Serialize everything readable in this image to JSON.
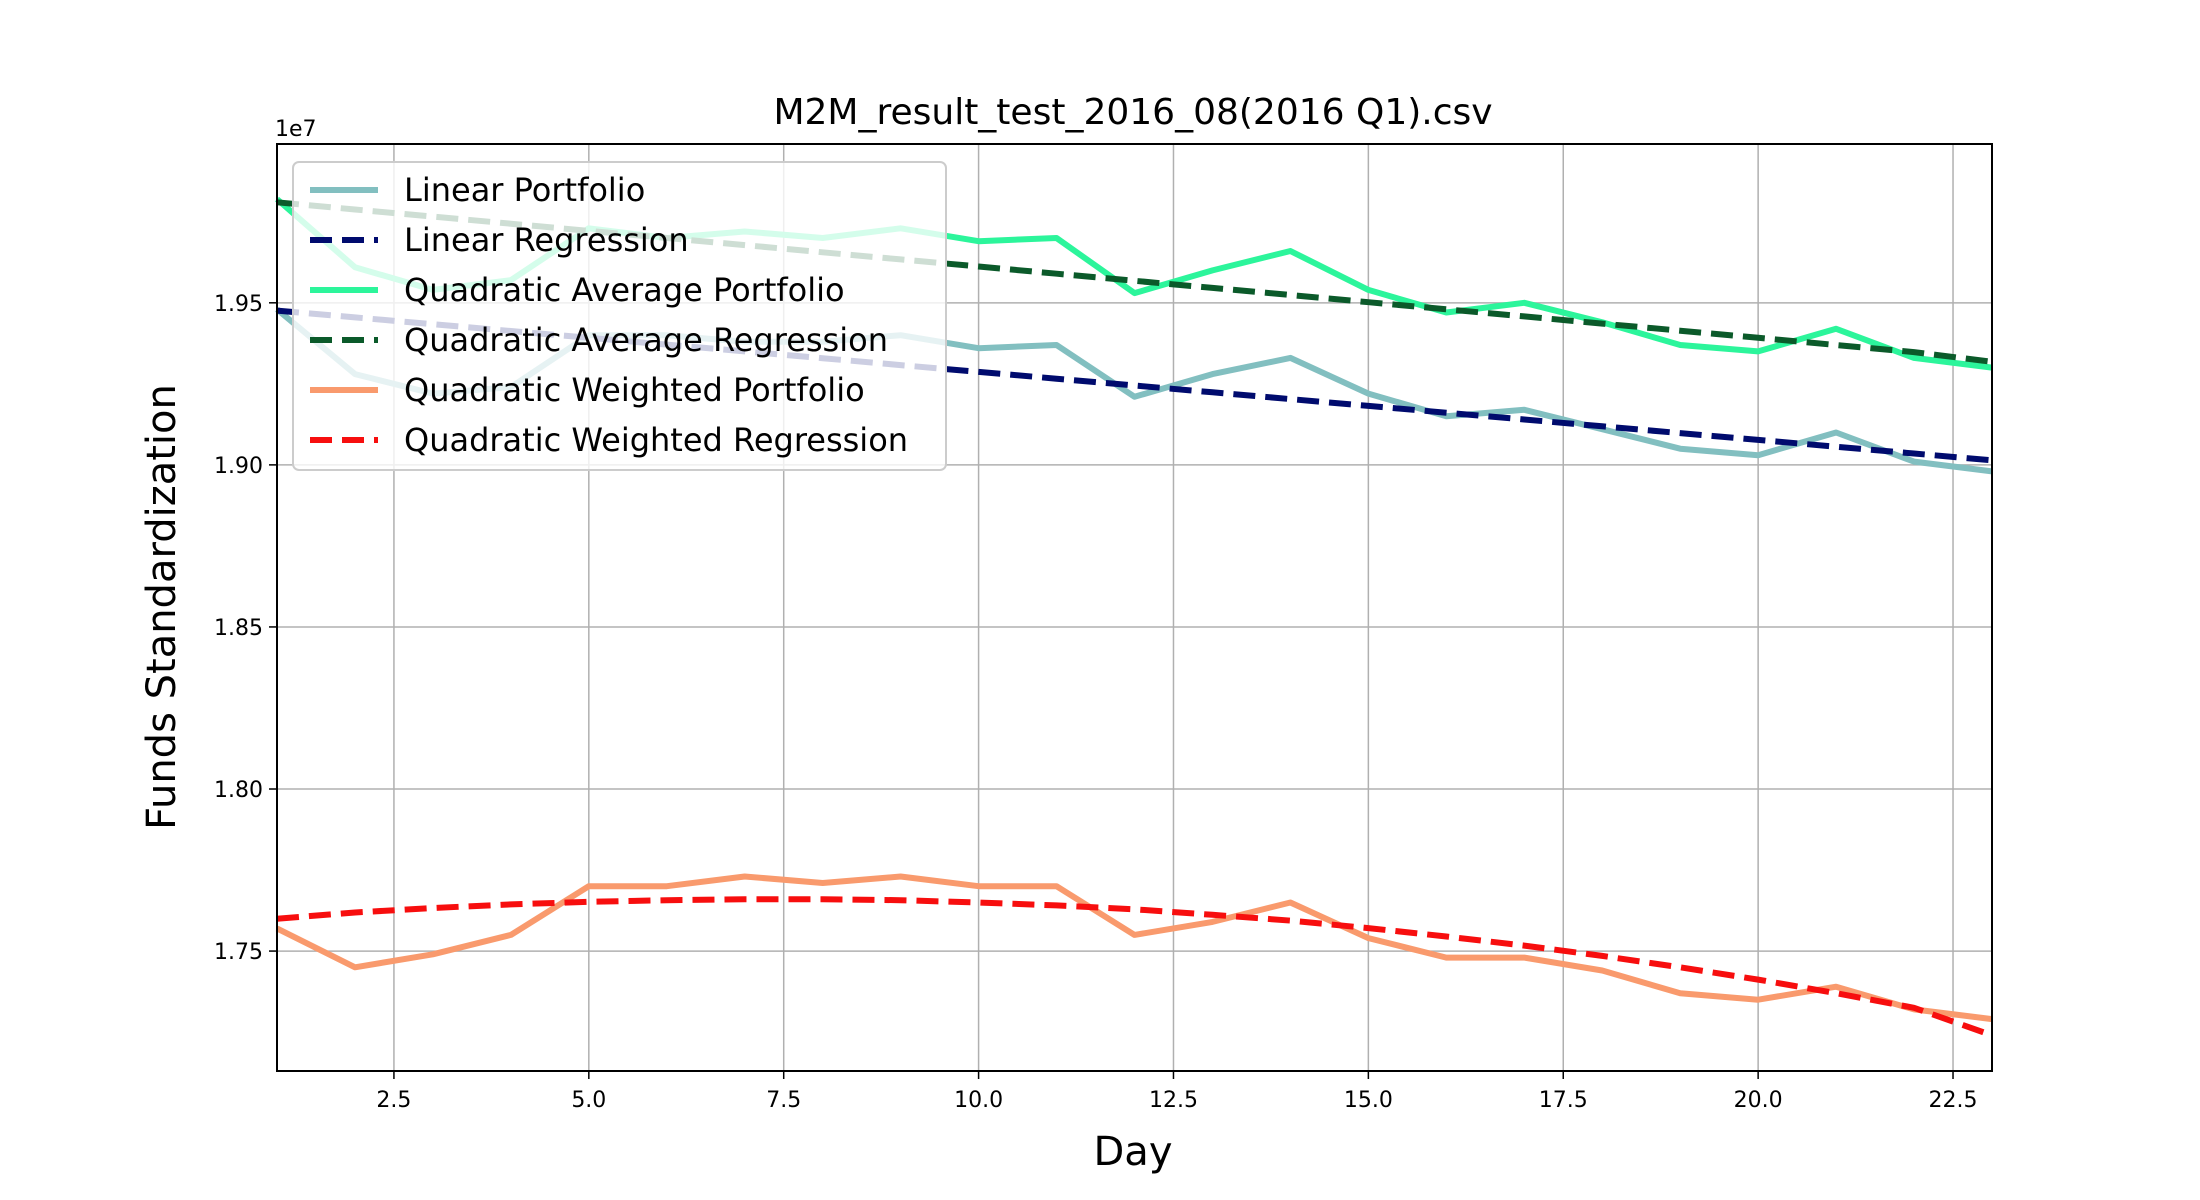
{
  "chart_data": {
    "type": "line",
    "title": "M2M_result_test_2016_08(2016 Q1).csv",
    "xlabel": "Day",
    "ylabel": "Funds Standardization",
    "y_offset_label": "1e7",
    "xlim": [
      1,
      23
    ],
    "ylim": [
      17130000,
      19990000
    ],
    "x_ticks": [
      2.5,
      5.0,
      7.5,
      10.0,
      12.5,
      15.0,
      17.5,
      20.0,
      22.5
    ],
    "x_tick_labels": [
      "2.5",
      "5.0",
      "7.5",
      "10.0",
      "12.5",
      "15.0",
      "17.5",
      "20.0",
      "22.5"
    ],
    "y_ticks": [
      17500000,
      18000000,
      18500000,
      19000000,
      19500000
    ],
    "y_tick_labels": [
      "1.75",
      "1.80",
      "1.85",
      "1.90",
      "1.95"
    ],
    "grid": true,
    "legend_position": "top-left",
    "x": [
      1,
      2,
      3,
      4,
      5,
      6,
      7,
      8,
      9,
      10,
      11,
      12,
      13,
      14,
      15,
      16,
      17,
      18,
      19,
      20,
      21,
      22,
      23
    ],
    "series": [
      {
        "name": "Linear Portfolio",
        "style": "solid",
        "color": "#82bfc0",
        "values": [
          19480000,
          19280000,
          19220000,
          19240000,
          19400000,
          19400000,
          19380000,
          19380000,
          19400000,
          19360000,
          19370000,
          19210000,
          19280000,
          19330000,
          19220000,
          19150000,
          19170000,
          19110000,
          19050000,
          19030000,
          19100000,
          19010000,
          18980000
        ]
      },
      {
        "name": "Linear Regression",
        "style": "dashed",
        "color": "#000b6e",
        "values": [
          19476000,
          19455000,
          19434000,
          19413000,
          19392000,
          19371000,
          19350000,
          19329000,
          19308000,
          19287000,
          19266000,
          19245000,
          19224000,
          19203000,
          19182000,
          19161000,
          19140000,
          19119000,
          19098000,
          19077000,
          19056000,
          19035000,
          19014000
        ]
      },
      {
        "name": "Quadratic Average Portfolio",
        "style": "solid",
        "color": "#2cf59b",
        "values": [
          19820000,
          19610000,
          19540000,
          19570000,
          19730000,
          19700000,
          19720000,
          19700000,
          19730000,
          19690000,
          19700000,
          19530000,
          19600000,
          19660000,
          19540000,
          19470000,
          19500000,
          19440000,
          19370000,
          19350000,
          19420000,
          19330000,
          19300000
        ]
      },
      {
        "name": "Quadratic Average Regression",
        "style": "dashed",
        "color": "#0b5a2a",
        "values": [
          19810000,
          19788000,
          19766000,
          19744000,
          19722000,
          19700000,
          19678000,
          19656000,
          19634000,
          19612000,
          19590000,
          19568000,
          19546000,
          19524000,
          19502000,
          19480000,
          19458000,
          19436000,
          19414000,
          19392000,
          19370000,
          19348000,
          19318000
        ]
      },
      {
        "name": "Quadratic Weighted Portfolio",
        "style": "solid",
        "color": "#f99a6d",
        "values": [
          17570000,
          17450000,
          17490000,
          17550000,
          17700000,
          17700000,
          17730000,
          17710000,
          17730000,
          17700000,
          17700000,
          17550000,
          17590000,
          17650000,
          17540000,
          17480000,
          17480000,
          17440000,
          17370000,
          17350000,
          17390000,
          17320000,
          17290000
        ]
      },
      {
        "name": "Quadratic Weighted Regression",
        "style": "dashed",
        "color": "#f70e0e",
        "values": [
          17600000,
          17619000,
          17633000,
          17644000,
          17652000,
          17657000,
          17660000,
          17660000,
          17657000,
          17650000,
          17641000,
          17629000,
          17612000,
          17594000,
          17571000,
          17545000,
          17517000,
          17485000,
          17450000,
          17412000,
          17370000,
          17325000,
          17240000
        ]
      }
    ]
  }
}
